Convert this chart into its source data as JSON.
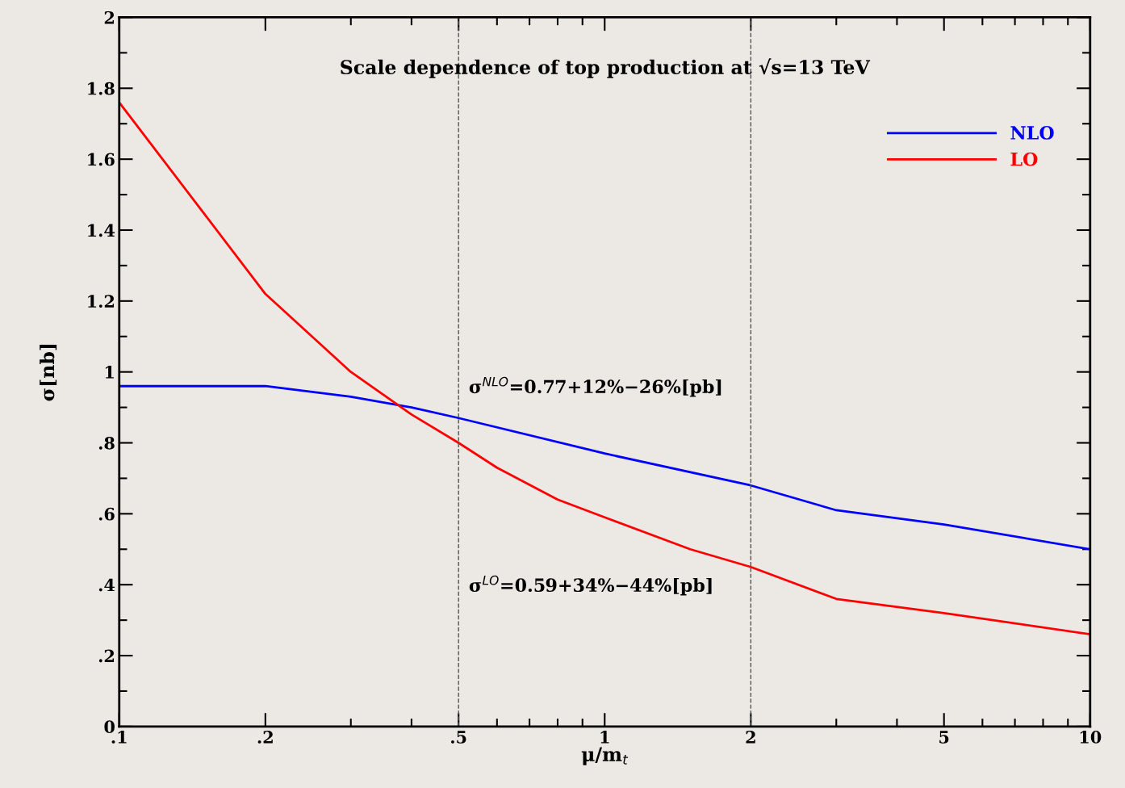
{
  "chart_data": {
    "type": "line",
    "title": "Scale dependence of top production at √s=13 TeV",
    "xlabel": "μ/m$_{t}$",
    "ylabel": "σ[nb]",
    "log": "x",
    "xlim": [
      0.1,
      10
    ],
    "xticks": [
      {
        "value": 0.1,
        "label": ".1"
      },
      {
        "value": 0.2,
        "label": ".2"
      },
      {
        "value": 0.5,
        "label": ".5"
      },
      1,
      2,
      5,
      10
    ],
    "ylim": [
      0,
      2
    ],
    "yticks": [
      0,
      {
        "value": 0.2,
        "label": ".2"
      },
      {
        "value": 0.4,
        "label": ".4"
      },
      {
        "value": 0.6,
        "label": ".6"
      },
      {
        "value": 0.8,
        "label": ".8"
      },
      1,
      1.2,
      1.4,
      1.6,
      1.8,
      2
    ],
    "grid": false,
    "legend": "top right",
    "marker": "none",
    "line_style": "solid",
    "series": [
      {
        "name": "NLO",
        "color": "#0000ff",
        "x": [
          0.1,
          0.2,
          0.3,
          0.4,
          0.5,
          1,
          2,
          3,
          5,
          10
        ],
        "values": [
          0.96,
          0.96,
          0.93,
          0.9,
          0.87,
          0.77,
          0.68,
          0.61,
          0.57,
          0.5
        ]
      },
      {
        "name": "LO",
        "color": "#ff0000",
        "x": [
          0.1,
          0.2,
          0.3,
          0.4,
          0.5,
          0.6,
          0.8,
          1,
          1.5,
          2,
          3,
          5,
          10
        ],
        "values": [
          1.76,
          1.22,
          1.0,
          0.88,
          0.8,
          0.73,
          0.64,
          0.59,
          0.5,
          0.45,
          0.36,
          0.32,
          0.26
        ]
      }
    ],
    "ref_lines": [
      {
        "axis": "x",
        "value": 0.5,
        "color": "#555555",
        "line_style": "dashed"
      },
      {
        "axis": "x",
        "value": 2,
        "color": "#555555",
        "line_style": "dashed"
      }
    ],
    "annotations": [
      "σ$^{NLO}$=0.77+12%−26%[pb]",
      "σ$^{LO}$=0.59+34%−44%[pb]"
    ]
  }
}
